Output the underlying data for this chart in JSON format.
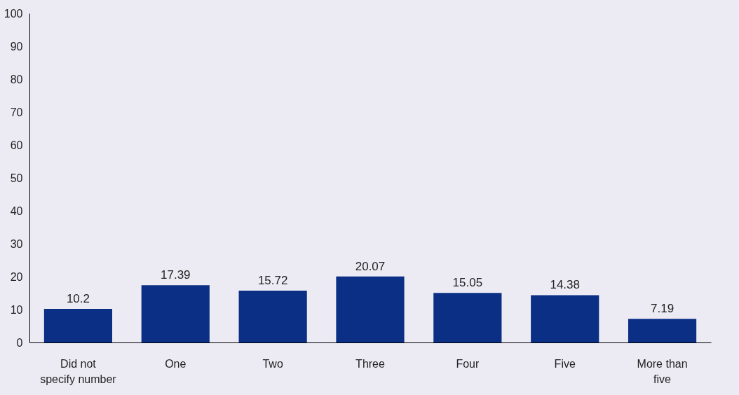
{
  "chart_data": {
    "type": "bar",
    "categories": [
      "Did not specify number",
      "One",
      "Two",
      "Three",
      "Four",
      "Five",
      "More than five"
    ],
    "values": [
      10.2,
      17.39,
      15.72,
      20.07,
      15.05,
      14.38,
      7.19
    ],
    "color": "#0b2f85",
    "ylim": [
      0,
      100
    ],
    "yticks": [
      0,
      10,
      20,
      30,
      40,
      50,
      60,
      70,
      80,
      90,
      100
    ],
    "grid": false,
    "data_labels": true
  }
}
